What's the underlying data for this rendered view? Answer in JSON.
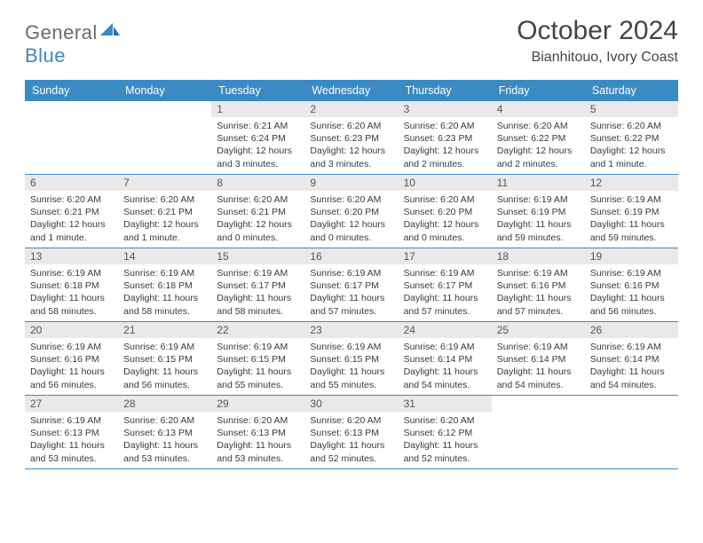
{
  "logo": {
    "general": "General",
    "blue": "Blue"
  },
  "title": "October 2024",
  "location": "Bianhitouo, Ivory Coast",
  "colors": {
    "header_bg": "#3b8ac4",
    "header_text": "#ffffff",
    "daynum_bg": "#e9e9e9",
    "border": "#3b8ac4",
    "body_text": "#3a3a3a",
    "page_bg": "#ffffff"
  },
  "weekday_labels": [
    "Sunday",
    "Monday",
    "Tuesday",
    "Wednesday",
    "Thursday",
    "Friday",
    "Saturday"
  ],
  "weeks": [
    [
      null,
      null,
      {
        "n": "1",
        "sr": "6:21 AM",
        "ss": "6:24 PM",
        "dl": "12 hours and 3 minutes."
      },
      {
        "n": "2",
        "sr": "6:20 AM",
        "ss": "6:23 PM",
        "dl": "12 hours and 3 minutes."
      },
      {
        "n": "3",
        "sr": "6:20 AM",
        "ss": "6:23 PM",
        "dl": "12 hours and 2 minutes."
      },
      {
        "n": "4",
        "sr": "6:20 AM",
        "ss": "6:22 PM",
        "dl": "12 hours and 2 minutes."
      },
      {
        "n": "5",
        "sr": "6:20 AM",
        "ss": "6:22 PM",
        "dl": "12 hours and 1 minute."
      }
    ],
    [
      {
        "n": "6",
        "sr": "6:20 AM",
        "ss": "6:21 PM",
        "dl": "12 hours and 1 minute."
      },
      {
        "n": "7",
        "sr": "6:20 AM",
        "ss": "6:21 PM",
        "dl": "12 hours and 1 minute."
      },
      {
        "n": "8",
        "sr": "6:20 AM",
        "ss": "6:21 PM",
        "dl": "12 hours and 0 minutes."
      },
      {
        "n": "9",
        "sr": "6:20 AM",
        "ss": "6:20 PM",
        "dl": "12 hours and 0 minutes."
      },
      {
        "n": "10",
        "sr": "6:20 AM",
        "ss": "6:20 PM",
        "dl": "12 hours and 0 minutes."
      },
      {
        "n": "11",
        "sr": "6:19 AM",
        "ss": "6:19 PM",
        "dl": "11 hours and 59 minutes."
      },
      {
        "n": "12",
        "sr": "6:19 AM",
        "ss": "6:19 PM",
        "dl": "11 hours and 59 minutes."
      }
    ],
    [
      {
        "n": "13",
        "sr": "6:19 AM",
        "ss": "6:18 PM",
        "dl": "11 hours and 58 minutes."
      },
      {
        "n": "14",
        "sr": "6:19 AM",
        "ss": "6:18 PM",
        "dl": "11 hours and 58 minutes."
      },
      {
        "n": "15",
        "sr": "6:19 AM",
        "ss": "6:17 PM",
        "dl": "11 hours and 58 minutes."
      },
      {
        "n": "16",
        "sr": "6:19 AM",
        "ss": "6:17 PM",
        "dl": "11 hours and 57 minutes."
      },
      {
        "n": "17",
        "sr": "6:19 AM",
        "ss": "6:17 PM",
        "dl": "11 hours and 57 minutes."
      },
      {
        "n": "18",
        "sr": "6:19 AM",
        "ss": "6:16 PM",
        "dl": "11 hours and 57 minutes."
      },
      {
        "n": "19",
        "sr": "6:19 AM",
        "ss": "6:16 PM",
        "dl": "11 hours and 56 minutes."
      }
    ],
    [
      {
        "n": "20",
        "sr": "6:19 AM",
        "ss": "6:16 PM",
        "dl": "11 hours and 56 minutes."
      },
      {
        "n": "21",
        "sr": "6:19 AM",
        "ss": "6:15 PM",
        "dl": "11 hours and 56 minutes."
      },
      {
        "n": "22",
        "sr": "6:19 AM",
        "ss": "6:15 PM",
        "dl": "11 hours and 55 minutes."
      },
      {
        "n": "23",
        "sr": "6:19 AM",
        "ss": "6:15 PM",
        "dl": "11 hours and 55 minutes."
      },
      {
        "n": "24",
        "sr": "6:19 AM",
        "ss": "6:14 PM",
        "dl": "11 hours and 54 minutes."
      },
      {
        "n": "25",
        "sr": "6:19 AM",
        "ss": "6:14 PM",
        "dl": "11 hours and 54 minutes."
      },
      {
        "n": "26",
        "sr": "6:19 AM",
        "ss": "6:14 PM",
        "dl": "11 hours and 54 minutes."
      }
    ],
    [
      {
        "n": "27",
        "sr": "6:19 AM",
        "ss": "6:13 PM",
        "dl": "11 hours and 53 minutes."
      },
      {
        "n": "28",
        "sr": "6:20 AM",
        "ss": "6:13 PM",
        "dl": "11 hours and 53 minutes."
      },
      {
        "n": "29",
        "sr": "6:20 AM",
        "ss": "6:13 PM",
        "dl": "11 hours and 53 minutes."
      },
      {
        "n": "30",
        "sr": "6:20 AM",
        "ss": "6:13 PM",
        "dl": "11 hours and 52 minutes."
      },
      {
        "n": "31",
        "sr": "6:20 AM",
        "ss": "6:12 PM",
        "dl": "11 hours and 52 minutes."
      },
      null,
      null
    ]
  ],
  "labels": {
    "sunrise": "Sunrise: ",
    "sunset": "Sunset: ",
    "daylight": "Daylight: "
  }
}
